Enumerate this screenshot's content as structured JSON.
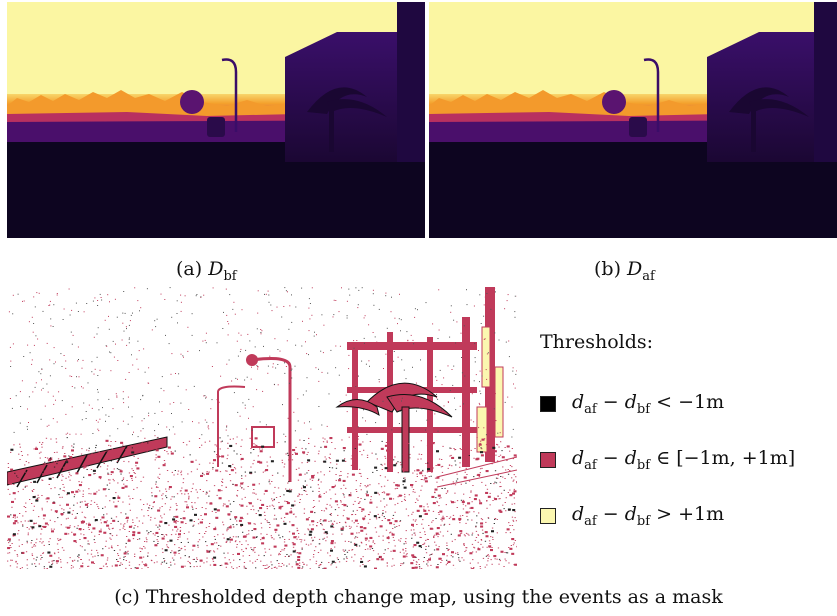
{
  "panels": {
    "a": {
      "label": "(a)",
      "symbol": "D",
      "subscript": "bf"
    },
    "b": {
      "label": "(b)",
      "symbol": "D",
      "subscript": "af"
    },
    "c": {
      "caption": "(c) Thresholded depth change map, using the events as a mask"
    }
  },
  "legend": {
    "title": "Thresholds:",
    "items": [
      {
        "color": "#000000",
        "lhs_var": "d",
        "lhs_sub": "af",
        "minus": "−",
        "rhs_var": "d",
        "rhs_sub": "bf",
        "condition": "< −1m"
      },
      {
        "color": "#c03a5a",
        "lhs_var": "d",
        "lhs_sub": "af",
        "minus": "−",
        "rhs_var": "d",
        "rhs_sub": "bf",
        "condition": "∈ [−1m, +1m]"
      },
      {
        "color": "#fbf7b0",
        "lhs_var": "d",
        "lhs_sub": "af",
        "minus": "−",
        "rhs_var": "d",
        "rhs_sub": "bf",
        "condition": "> +1m"
      }
    ]
  },
  "colors": {
    "sky": "#fbf6a2",
    "horizon": "#f59a2a",
    "building": "#2b0c57",
    "ground_dark": "#0d0520",
    "event_red": "#c03a5a",
    "event_yellow": "#fbf7b0"
  }
}
